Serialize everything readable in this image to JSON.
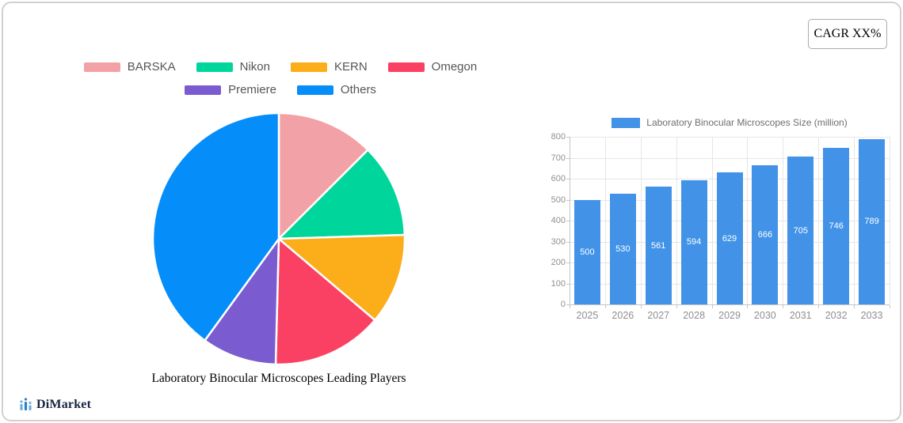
{
  "badge": {
    "label": "CAGR XX%"
  },
  "brand": {
    "name": "DiMarket"
  },
  "chart_data": [
    {
      "type": "pie",
      "title": "Laboratory Binocular Microscopes Leading Players",
      "legend_position": "top",
      "legend_rows": [
        4,
        2
      ],
      "series": [
        {
          "label": "BARSKA",
          "value": 12.5,
          "color": "#F2A1A6"
        },
        {
          "label": "Nikon",
          "value": 12.0,
          "color": "#00D69C"
        },
        {
          "label": "KERN",
          "value": 11.7,
          "color": "#FBAD1A"
        },
        {
          "label": "Omegon",
          "value": 14.2,
          "color": "#FA4163"
        },
        {
          "label": "Premiere",
          "value": 9.6,
          "color": "#7A5CD0"
        },
        {
          "label": "Others",
          "value": 40.0,
          "color": "#058DFA"
        }
      ]
    },
    {
      "type": "bar",
      "legend": "Laboratory Binocular Microscopes Size (million)",
      "bar_color": "#4293E8",
      "categories": [
        "2025",
        "2026",
        "2027",
        "2028",
        "2029",
        "2030",
        "2031",
        "2032",
        "2033"
      ],
      "values": [
        500,
        530,
        561,
        594,
        629,
        666,
        705,
        746,
        789
      ],
      "ylim": [
        0,
        800
      ],
      "y_ticks": [
        0,
        100,
        200,
        300,
        400,
        500,
        600,
        700,
        800
      ],
      "grid": true
    }
  ]
}
